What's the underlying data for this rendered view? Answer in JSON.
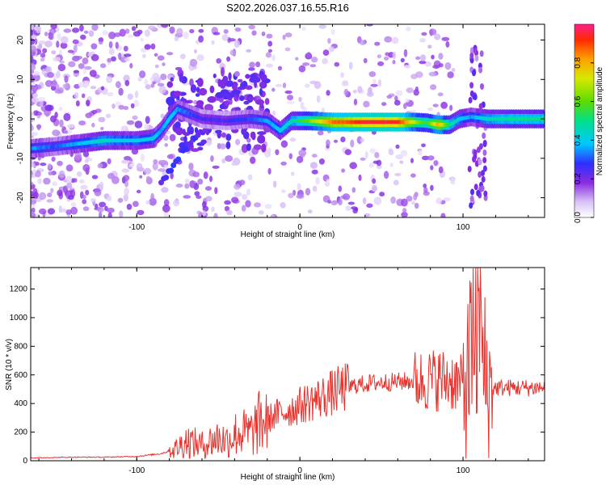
{
  "title": "S202.2026.037.16.55.R16",
  "colors": {
    "snr_line": "#e8332e",
    "frame": "#000000"
  },
  "chart_data": [
    {
      "type": "heatmap",
      "xlabel": "Height of straight line (km)",
      "ylabel": "Frequency (Hz)",
      "xlim": [
        -165,
        150
      ],
      "ylim": [
        -25,
        24
      ],
      "xticks": [
        -100,
        0,
        100
      ],
      "xtick_labels": [
        "-100",
        "0",
        "100"
      ],
      "yticks": [
        -20,
        -10,
        0,
        10,
        20
      ],
      "ytick_labels": [
        "-20",
        "-10",
        "0",
        "10",
        "20"
      ],
      "colorbar": {
        "label": "Normalized spectral amplitude",
        "range": [
          0,
          1
        ],
        "ticks": [
          0.0,
          0.2,
          0.4,
          0.6,
          0.8
        ],
        "tick_labels": [
          "0.0",
          "0.2",
          "0.4",
          "0.6",
          "0.8"
        ]
      },
      "ridge": [
        {
          "x": -165,
          "y": -7.5,
          "amp": 0.35
        },
        {
          "x": -150,
          "y": -7.0,
          "amp": 0.3
        },
        {
          "x": -140,
          "y": -6.5,
          "amp": 0.35
        },
        {
          "x": -130,
          "y": -6.0,
          "amp": 0.4
        },
        {
          "x": -120,
          "y": -5.5,
          "amp": 0.45
        },
        {
          "x": -110,
          "y": -5.5,
          "amp": 0.4
        },
        {
          "x": -100,
          "y": -5.5,
          "amp": 0.4
        },
        {
          "x": -90,
          "y": -5.0,
          "amp": 0.4
        },
        {
          "x": -85,
          "y": -3.0,
          "amp": 0.35
        },
        {
          "x": -80,
          "y": 0.0,
          "amp": 0.4
        },
        {
          "x": -75,
          "y": 2.5,
          "amp": 0.35
        },
        {
          "x": -60,
          "y": 0.0,
          "amp": 0.25
        },
        {
          "x": -45,
          "y": -0.5,
          "amp": 0.25
        },
        {
          "x": -30,
          "y": 0.0,
          "amp": 0.3
        },
        {
          "x": -20,
          "y": -0.5,
          "amp": 0.35
        },
        {
          "x": -12,
          "y": -3.0,
          "amp": 0.4
        },
        {
          "x": -5,
          "y": -0.5,
          "amp": 0.45
        },
        {
          "x": 5,
          "y": -0.5,
          "amp": 0.6
        },
        {
          "x": 20,
          "y": -0.8,
          "amp": 0.85
        },
        {
          "x": 40,
          "y": -0.8,
          "amp": 0.95
        },
        {
          "x": 60,
          "y": -0.8,
          "amp": 0.95
        },
        {
          "x": 70,
          "y": -0.8,
          "amp": 0.7
        },
        {
          "x": 78,
          "y": -1.0,
          "amp": 0.55
        },
        {
          "x": 85,
          "y": -1.5,
          "amp": 0.8
        },
        {
          "x": 92,
          "y": -1.5,
          "amp": 0.5
        },
        {
          "x": 98,
          "y": 0.0,
          "amp": 0.4
        },
        {
          "x": 105,
          "y": 0.5,
          "amp": 0.35
        },
        {
          "x": 115,
          "y": 0.0,
          "amp": 0.45
        },
        {
          "x": 130,
          "y": 0.0,
          "amp": 0.5
        },
        {
          "x": 150,
          "y": 0.0,
          "amp": 0.5
        }
      ],
      "secondary_ridge": [
        {
          "x": -85,
          "y": -16,
          "amp": 0.25
        },
        {
          "x": -80,
          "y": -13,
          "amp": 0.25
        },
        {
          "x": -72,
          "y": -8,
          "amp": 0.25
        },
        {
          "x": -65,
          "y": -5,
          "amp": 0.25
        },
        {
          "x": -55,
          "y": -1,
          "amp": 0.2
        },
        {
          "x": -45,
          "y": 4,
          "amp": 0.2
        },
        {
          "x": -40,
          "y": 8,
          "amp": 0.2
        },
        {
          "x": -38,
          "y": 13,
          "amp": 0.15
        }
      ]
    },
    {
      "type": "line",
      "xlabel": "Height of straight line (km)",
      "ylabel": "SNR (10 * v/v)",
      "xlim": [
        -165,
        150
      ],
      "ylim": [
        0,
        1350
      ],
      "xticks": [
        -100,
        0,
        100
      ],
      "xtick_labels": [
        "-100",
        "0",
        "100"
      ],
      "yticks": [
        0,
        200,
        400,
        600,
        800,
        1000,
        1200
      ],
      "ytick_labels": [
        "0",
        "200",
        "400",
        "600",
        "800",
        "1000",
        "1200"
      ],
      "series": [
        {
          "name": "SNR",
          "points": [
            {
              "x": -165,
              "y": 20
            },
            {
              "x": -140,
              "y": 25
            },
            {
              "x": -120,
              "y": 25
            },
            {
              "x": -100,
              "y": 30
            },
            {
              "x": -85,
              "y": 50
            },
            {
              "x": -75,
              "y": 90
            },
            {
              "x": -70,
              "y": 140
            },
            {
              "x": -60,
              "y": 110
            },
            {
              "x": -50,
              "y": 160
            },
            {
              "x": -45,
              "y": 140
            },
            {
              "x": -38,
              "y": 200
            },
            {
              "x": -30,
              "y": 190
            },
            {
              "x": -25,
              "y": 260
            },
            {
              "x": -15,
              "y": 320
            },
            {
              "x": -5,
              "y": 360
            },
            {
              "x": 5,
              "y": 410
            },
            {
              "x": 15,
              "y": 450
            },
            {
              "x": 25,
              "y": 500
            },
            {
              "x": 35,
              "y": 530
            },
            {
              "x": 45,
              "y": 545
            },
            {
              "x": 55,
              "y": 550
            },
            {
              "x": 65,
              "y": 555
            },
            {
              "x": 75,
              "y": 560
            },
            {
              "x": 85,
              "y": 570
            },
            {
              "x": 95,
              "y": 560
            },
            {
              "x": 100,
              "y": 520
            },
            {
              "x": 104,
              "y": 600
            },
            {
              "x": 108,
              "y": 750
            },
            {
              "x": 112,
              "y": 700
            },
            {
              "x": 115,
              "y": 500
            },
            {
              "x": 120,
              "y": 510
            },
            {
              "x": 135,
              "y": 510
            },
            {
              "x": 150,
              "y": 510
            }
          ]
        }
      ]
    }
  ]
}
